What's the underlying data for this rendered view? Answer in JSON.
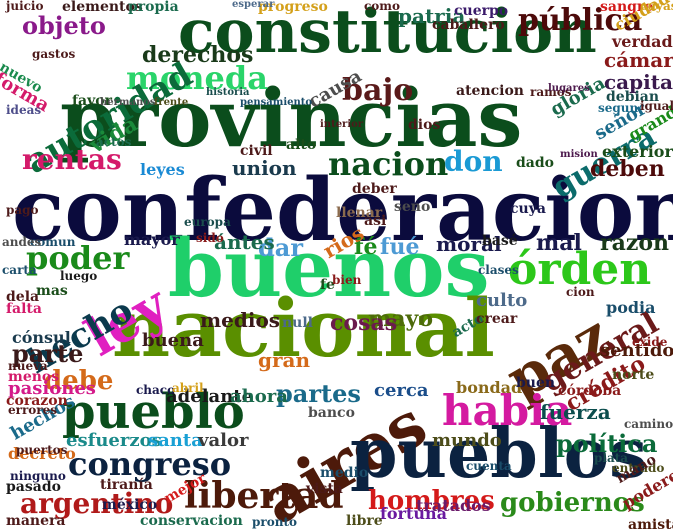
{
  "words": [
    {
      "text": "confederacion",
      "color": "#0b0b3d"
    },
    {
      "text": "provincias",
      "color": "#0b4d1c"
    },
    {
      "text": "constitucion",
      "color": "#0b4d1c"
    },
    {
      "text": "buenos",
      "color": "#1fcf6a"
    },
    {
      "text": "nacional",
      "color": "#5a8f00"
    },
    {
      "text": "aires",
      "color": "#4d1a0a"
    },
    {
      "text": "pueblos",
      "color": "#0b2240"
    },
    {
      "text": "pueblo",
      "color": "#0b4d1c"
    },
    {
      "text": "paz",
      "color": "#5a2a0a"
    },
    {
      "text": "ley",
      "color": "#e020c0"
    },
    {
      "text": "órden",
      "color": "#2cc71a"
    },
    {
      "text": "habia",
      "color": "#d41aa0"
    },
    {
      "text": "moneda",
      "color": "#2ad46a"
    },
    {
      "text": "autoridad",
      "color": "#0b6b3a"
    },
    {
      "text": "hecho",
      "color": "#0b3a4d"
    },
    {
      "text": "general",
      "color": "#6b1a1a"
    },
    {
      "text": "congreso",
      "color": "#0b2240"
    },
    {
      "text": "libertad",
      "color": "#4d1a0a"
    },
    {
      "text": "argentino",
      "color": "#b01a1a"
    },
    {
      "text": "gobiernos",
      "color": "#2a8a1a"
    },
    {
      "text": "hombres",
      "color": "#d41a1a"
    },
    {
      "text": "bajo",
      "color": "#5a1a1a"
    },
    {
      "text": "pública",
      "color": "#4d0a0a"
    },
    {
      "text": "guerra",
      "color": "#0b6b6b"
    },
    {
      "text": "poder",
      "color": "#1a8a1a"
    },
    {
      "text": "rentas",
      "color": "#d41a6a"
    },
    {
      "text": "nacion",
      "color": "#0b4d1c"
    },
    {
      "text": "don",
      "color": "#1a9ad4"
    },
    {
      "text": "objeto",
      "color": "#8a1a8a"
    },
    {
      "text": "política",
      "color": "#0b6b3a"
    },
    {
      "text": "crédito",
      "color": "#8a1a1a"
    },
    {
      "text": "debe",
      "color": "#d46a1a"
    },
    {
      "text": "parte",
      "color": "#3a1a1a"
    },
    {
      "text": "fuerza",
      "color": "#0b4d4d"
    },
    {
      "text": "derechos",
      "color": "#1a3a1a"
    },
    {
      "text": "patria",
      "color": "#1a6a4d"
    },
    {
      "text": "deben",
      "color": "#4d0a0a"
    },
    {
      "text": "mayo",
      "color": "#4d6a0a"
    },
    {
      "text": "dar",
      "color": "#4d9ad4"
    },
    {
      "text": "cosas",
      "color": "#6b1a4d"
    },
    {
      "text": "mal",
      "color": "#1a1a4d"
    },
    {
      "text": "razon",
      "color": "#1a3a1a"
    },
    {
      "text": "partes",
      "color": "#1a6a8a"
    },
    {
      "text": "medios",
      "color": "#3a1a1a"
    },
    {
      "text": "sentido",
      "color": "#4d1a0a"
    },
    {
      "text": "capital",
      "color": "#3a1a4d"
    },
    {
      "text": "cámaras",
      "color": "#8a1a1a"
    },
    {
      "text": "verdad",
      "color": "#6a1a1a"
    },
    {
      "text": "gloria",
      "color": "#1a6a4d"
    },
    {
      "text": "culto",
      "color": "#4d6a8a"
    },
    {
      "text": "moral",
      "color": "#1a1a4d"
    },
    {
      "text": "union",
      "color": "#1a3a4d"
    },
    {
      "text": "fé",
      "color": "#1a8a1a"
    },
    {
      "text": "fué",
      "color": "#4d9ad4"
    },
    {
      "text": "rios",
      "color": "#d46a1a"
    },
    {
      "text": "ántes",
      "color": "#1a6a4d"
    },
    {
      "text": "mayor",
      "color": "#1a1a4d"
    },
    {
      "text": "buena",
      "color": "#3a1a1a"
    },
    {
      "text": "esfuerzos",
      "color": "#1a8a8a"
    },
    {
      "text": "santa",
      "color": "#1aa0d4"
    },
    {
      "text": "valor",
      "color": "#3a3a3a"
    },
    {
      "text": "cerca",
      "color": "#1a4d8a"
    },
    {
      "text": "bondad",
      "color": "#8a6a1a"
    },
    {
      "text": "mundo",
      "color": "#4d4d1a"
    },
    {
      "text": "adelante",
      "color": "#1a1a1a"
    },
    {
      "text": "ahora",
      "color": "#1a6a4d"
    },
    {
      "text": "tratados",
      "color": "#6a1a6a"
    },
    {
      "text": "fortuna",
      "color": "#6a1aa0"
    },
    {
      "text": "vista",
      "color": "#4d1a1a"
    },
    {
      "text": "medio",
      "color": "#1a4d6a"
    },
    {
      "text": "gran",
      "color": "#d46a1a"
    },
    {
      "text": "pasiones",
      "color": "#d41a8a"
    },
    {
      "text": "cónsul",
      "color": "#1a3a4d"
    },
    {
      "text": "hechos",
      "color": "#1a6a8a"
    },
    {
      "text": "amistad",
      "color": "#4d1a0a"
    },
    {
      "text": "poderes",
      "color": "#8a1a1a"
    },
    {
      "text": "atencion",
      "color": "#3a1a1a"
    },
    {
      "text": "causa",
      "color": "#4d4d4d"
    },
    {
      "text": "señor",
      "color": "#1a6a8a"
    },
    {
      "text": "vida",
      "color": "#1a8a3a"
    },
    {
      "text": "forma",
      "color": "#d41a6a"
    },
    {
      "text": "elementos",
      "color": "#3a1a1a"
    },
    {
      "text": "propia",
      "color": "#1a6a4d"
    },
    {
      "text": "progreso",
      "color": "#d4a01a"
    },
    {
      "text": "caballero",
      "color": "#4d1a1a"
    },
    {
      "text": "cuerpo",
      "color": "#3a1a6a"
    },
    {
      "text": "sangre",
      "color": "#d41a1a"
    },
    {
      "text": "ciudad",
      "color": "#d4a01a"
    },
    {
      "text": "exterior",
      "color": "#1a4d1a"
    },
    {
      "text": "grande",
      "color": "#1a8a1a"
    },
    {
      "text": "podia",
      "color": "#1a4d6a"
    },
    {
      "text": "norte",
      "color": "#4d4d1a"
    },
    {
      "text": "córdoba",
      "color": "#8a1a1a"
    },
    {
      "text": "conservacion",
      "color": "#1a6a4d"
    },
    {
      "text": "libre",
      "color": "#4d4d1a"
    },
    {
      "text": "pasado",
      "color": "#1a1a1a"
    },
    {
      "text": "decreto",
      "color": "#d46a1a"
    },
    {
      "text": "manera",
      "color": "#4d1a1a"
    },
    {
      "text": "corazon",
      "color": "#8a1a1a"
    },
    {
      "text": "méxico",
      "color": "#1a1a4d"
    },
    {
      "text": "tiranía",
      "color": "#4d1a1a"
    },
    {
      "text": "mejor",
      "color": "#d41a1a"
    },
    {
      "text": "alto",
      "color": "#1a4d1a"
    },
    {
      "text": "leyes",
      "color": "#1a8ad4"
    },
    {
      "text": "deber",
      "color": "#4d1a1a"
    },
    {
      "text": "null",
      "color": "#4d6a8a"
    },
    {
      "text": "acto",
      "color": "#1a6a4d"
    },
    {
      "text": "dios",
      "color": "#4d1a1a"
    },
    {
      "text": "mas",
      "color": "#1a4d1a"
    },
    {
      "text": "dela",
      "color": "#4d1a1a"
    },
    {
      "text": "falta",
      "color": "#d41a6a"
    },
    {
      "text": "comun",
      "color": "#1a4d6a"
    },
    {
      "text": "cuya",
      "color": "#1a1a4d"
    },
    {
      "text": "basé",
      "color": "#1a1a1a"
    },
    {
      "text": "llenar",
      "color": "#8a6a4d"
    },
    {
      "text": "asi",
      "color": "#4d1a1a"
    },
    {
      "text": "seno",
      "color": "#4d4d4d"
    },
    {
      "text": "civil",
      "color": "#4d1a1a"
    },
    {
      "text": "dado",
      "color": "#1a4d1a"
    },
    {
      "text": "buen",
      "color": "#1a1a4d"
    },
    {
      "text": "banco",
      "color": "#4d4d4d"
    },
    {
      "text": "cuenta",
      "color": "#1a4d6a"
    },
    {
      "text": "crear",
      "color": "#4d1a1a"
    },
    {
      "text": "juicio",
      "color": "#4d1a1a"
    },
    {
      "text": "nuevo",
      "color": "#1a8a4d"
    },
    {
      "text": "gastos",
      "color": "#4d1a1a"
    },
    {
      "text": "favor",
      "color": "#1a4d1a"
    },
    {
      "text": "ideas",
      "color": "#4d4d8a"
    },
    {
      "text": "ramos",
      "color": "#4d1a1a"
    },
    {
      "text": "cuyas",
      "color": "#d4a01a"
    },
    {
      "text": "como",
      "color": "#4d1a1a"
    },
    {
      "text": "esperar",
      "color": "#4d6a8a"
    },
    {
      "text": "debian",
      "color": "#1a4d4d"
    },
    {
      "text": "igual",
      "color": "#4d1a1a"
    },
    {
      "text": "segun",
      "color": "#1a6a8a"
    },
    {
      "text": "lugares",
      "color": "#4d1a4d"
    },
    {
      "text": "sido",
      "color": "#8a1a1a"
    },
    {
      "text": "europa",
      "color": "#1a4d4d"
    },
    {
      "text": "chaco",
      "color": "#1a1a4d"
    },
    {
      "text": "cion",
      "color": "#4d1a1a"
    },
    {
      "text": "luego",
      "color": "#1a1a1a"
    },
    {
      "text": "abril",
      "color": "#d4a01a"
    },
    {
      "text": "exide",
      "color": "#8a1a1a"
    },
    {
      "text": "entrado",
      "color": "#4d4d1a"
    },
    {
      "text": "mano",
      "color": "#4d1a1a"
    },
    {
      "text": "plata",
      "color": "#1a4d4d"
    },
    {
      "text": "caminos",
      "color": "#4d4d4d"
    },
    {
      "text": "puertos",
      "color": "#4d1a1a"
    },
    {
      "text": "ninguno",
      "color": "#1a1a4d"
    },
    {
      "text": "nueva",
      "color": "#4d1a1a"
    },
    {
      "text": "menos",
      "color": "#d41a6a"
    },
    {
      "text": "errores",
      "color": "#4d1a1a"
    },
    {
      "text": "pronto",
      "color": "#1a4d6a"
    },
    {
      "text": "andes",
      "color": "#4d4d4d"
    },
    {
      "text": "carta",
      "color": "#1a4d6a"
    },
    {
      "text": "pago",
      "color": "#4d1a1a"
    },
    {
      "text": "fe",
      "color": "#1a4d1a"
    },
    {
      "text": "bien",
      "color": "#8a1a1a"
    },
    {
      "text": "clases",
      "color": "#1a4d6a"
    },
    {
      "text": "actos",
      "color": "#1a6a4d"
    },
    {
      "text": "historia",
      "color": "#1a4d4d"
    },
    {
      "text": "hermanos",
      "color": "#4d4d4d"
    },
    {
      "text": "frente",
      "color": "#4d4d1a"
    },
    {
      "text": "pensamiento",
      "color": "#1a4d6a"
    },
    {
      "text": "interior",
      "color": "#4d1a1a"
    },
    {
      "text": "mision",
      "color": "#4d1a4d"
    }
  ]
}
